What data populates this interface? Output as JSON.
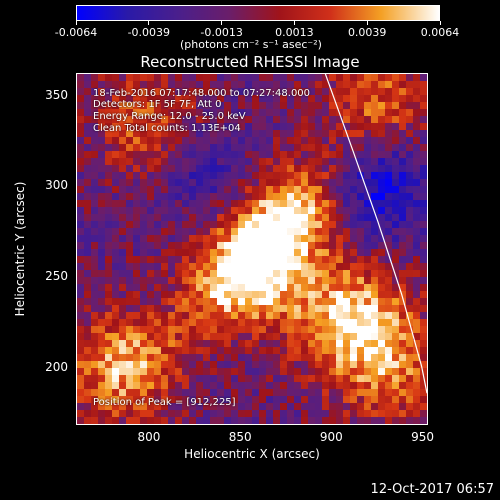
{
  "colorbar": {
    "ticks": [
      "-0.0064",
      "-0.0039",
      "-0.0013",
      "0.0013",
      "0.0039",
      "0.0064"
    ],
    "units": "(photons cm⁻² s⁻¹ asec⁻²)"
  },
  "title": "Reconstructed RHESSI Image",
  "annotations": {
    "time_range": "18-Feb-2016 07:17:48.000 to 07:27:48.000",
    "detectors": "Detectors: 1F 5F 7F, Att 0",
    "energy": "Energy Range: 12.0 - 25.0 keV",
    "clean": "Clean    Total counts: 1.13E+04",
    "peak": "Position of Peak = [912,225]"
  },
  "axes": {
    "xlabel": "Heliocentric X (arcsec)",
    "ylabel": "Heliocentric Y (arcsec)",
    "xticks": [
      "800",
      "850",
      "900",
      "950"
    ],
    "yticks": [
      "200",
      "250",
      "300",
      "350"
    ]
  },
  "date_stamp": "12-Oct-2017 06:57",
  "chart_data": {
    "type": "heatmap",
    "title": "Reconstructed RHESSI Image",
    "xlabel": "Heliocentric X (arcsec)",
    "ylabel": "Heliocentric Y (arcsec)",
    "xlim": [
      760,
      953
    ],
    "ylim": [
      168,
      362
    ],
    "clim": [
      -0.0064,
      0.0064
    ],
    "colorbar_ticks": [
      -0.0064,
      -0.0039,
      -0.0013,
      0.0013,
      0.0039,
      0.0064
    ],
    "peak": [
      912,
      225
    ],
    "limb_curve": [
      [
        897,
        362
      ],
      [
        912,
        320
      ],
      [
        926,
        280
      ],
      [
        939,
        240
      ],
      [
        950,
        200
      ],
      [
        953,
        185
      ]
    ],
    "sources": [
      {
        "x": 855,
        "y": 250,
        "level": 0.0064
      },
      {
        "x": 880,
        "y": 285,
        "level": 0.0045
      },
      {
        "x": 912,
        "y": 225,
        "level": 0.0064
      },
      {
        "x": 785,
        "y": 200,
        "level": 0.0055
      },
      {
        "x": 800,
        "y": 335,
        "level": 0.004
      },
      {
        "x": 925,
        "y": 345,
        "level": 0.004
      },
      {
        "x": 935,
        "y": 195,
        "level": 0.0035
      }
    ]
  }
}
